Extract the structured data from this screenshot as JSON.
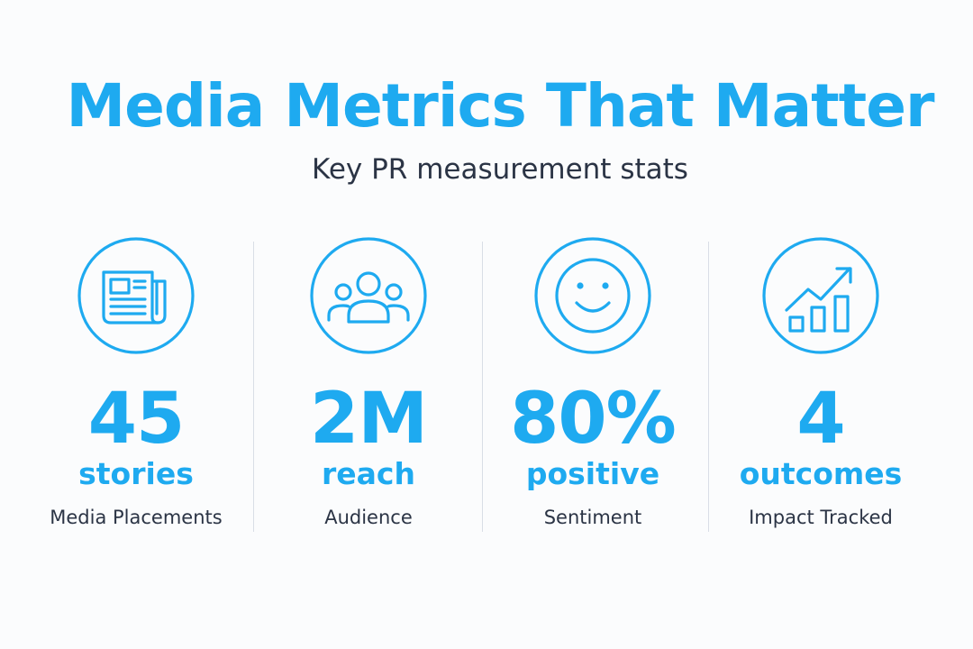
{
  "header": {
    "title": "Media Metrics That Matter",
    "subtitle": "Key PR measurement stats"
  },
  "accent_color": "#1eaaf0",
  "text_color": "#2b3445",
  "stats": [
    {
      "value": "45",
      "unit": "stories",
      "label": "Media Placements",
      "icon": "newspaper-icon"
    },
    {
      "value": "2M",
      "unit": "reach",
      "label": "Audience",
      "icon": "audience-icon"
    },
    {
      "value": "80%",
      "unit": "positive",
      "label": "Sentiment",
      "icon": "smiley-icon"
    },
    {
      "value": "4",
      "unit": "outcomes",
      "label": "Impact Tracked",
      "icon": "growth-chart-icon"
    }
  ]
}
